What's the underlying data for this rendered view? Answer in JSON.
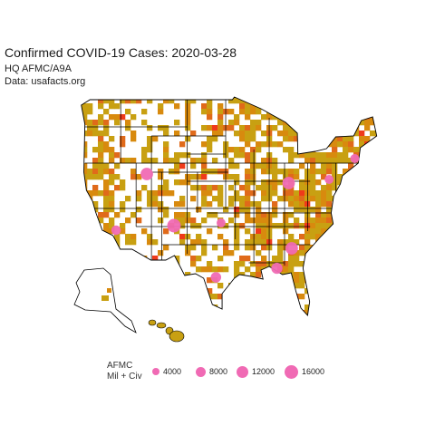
{
  "title": "Confirmed COVID-19 Cases: 2020-03-28",
  "subtitle_lines": [
    "HQ AFMC/A9A",
    "Data: usafacts.org"
  ],
  "colors": {
    "county_low": "#c8a012",
    "county_mid": "#d88a0e",
    "county_high": "#e06a1a",
    "county_top": "#ef3a1a",
    "bubble": "#f06ab4",
    "border": "#000000"
  },
  "legend": {
    "title_lines": [
      "AFMC",
      "Mil + Civ"
    ],
    "items": [
      {
        "label": "4000",
        "value": 4000
      },
      {
        "label": "8000",
        "value": 8000
      },
      {
        "label": "12000",
        "value": 12000
      },
      {
        "label": "16000",
        "value": 16000
      }
    ]
  },
  "bubbles": [
    {
      "lon": -111.9,
      "lat": 40.8,
      "value": 12000
    },
    {
      "lon": -106.6,
      "lat": 35.1,
      "value": 16000
    },
    {
      "lon": -84.2,
      "lat": 39.8,
      "value": 12000
    },
    {
      "lon": -83.6,
      "lat": 32.6,
      "value": 12000
    },
    {
      "lon": -86.5,
      "lat": 30.4,
      "value": 8000
    },
    {
      "lon": -98.4,
      "lat": 29.4,
      "value": 6000
    },
    {
      "lon": -117.9,
      "lat": 34.6,
      "value": 4000
    },
    {
      "lon": -97.4,
      "lat": 35.4,
      "value": 3000
    },
    {
      "lon": -76.3,
      "lat": 40.2,
      "value": 3000
    },
    {
      "lon": -71.3,
      "lat": 42.5,
      "value": 3000
    }
  ]
}
